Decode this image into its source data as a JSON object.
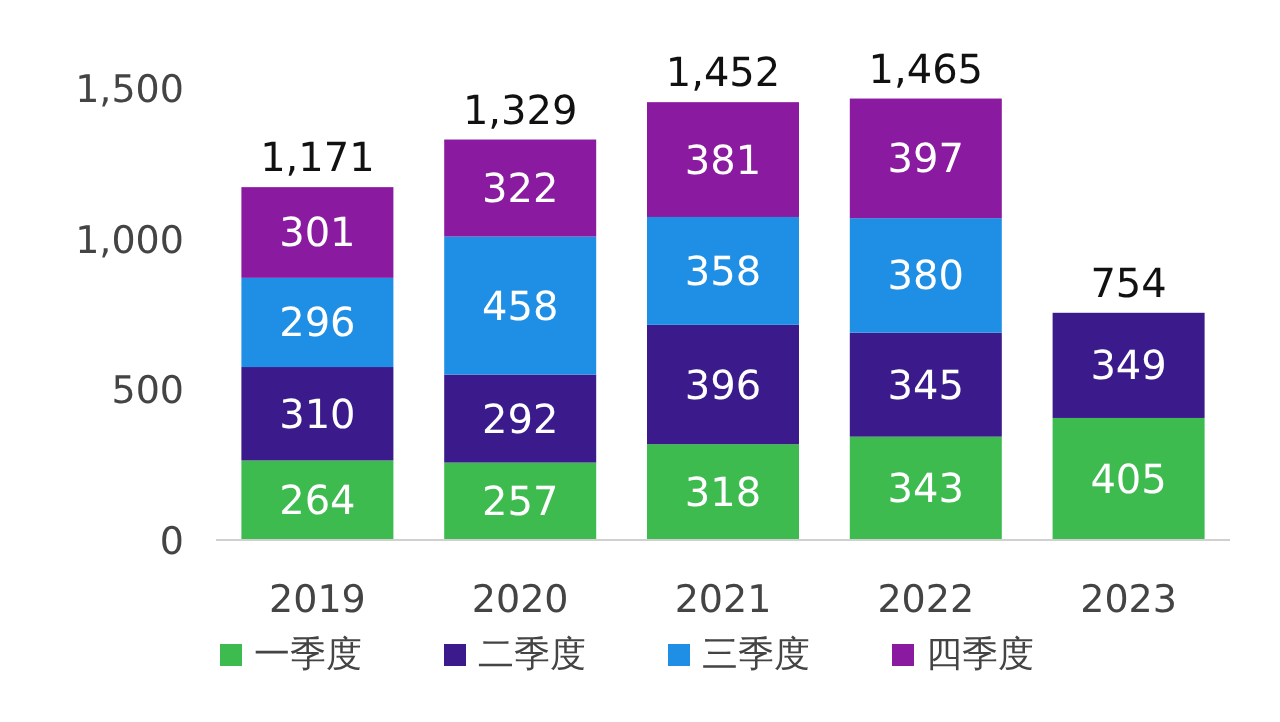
{
  "chart_data": {
    "type": "bar",
    "stacked": true,
    "categories": [
      "2019",
      "2020",
      "2021",
      "2022",
      "2023"
    ],
    "series": [
      {
        "name": "一季度",
        "color": "#3dbb4f",
        "values": [
          264,
          257,
          318,
          343,
          405
        ]
      },
      {
        "name": "二季度",
        "color": "#3b1a8c",
        "values": [
          310,
          292,
          396,
          345,
          349
        ]
      },
      {
        "name": "三季度",
        "color": "#1f8fe6",
        "values": [
          296,
          458,
          358,
          380,
          null
        ]
      },
      {
        "name": "四季度",
        "color": "#8a1aa0",
        "values": [
          301,
          322,
          381,
          397,
          null
        ]
      }
    ],
    "ylim": [
      0,
      1500
    ],
    "yticks": [
      0,
      500,
      {
        "value": 1000,
        "label": "1,000"
      },
      {
        "value": 1500,
        "label": "1,500"
      }
    ],
    "data_labels": true,
    "totals": [
      "1,171",
      "1,329",
      "1,452",
      "1,465",
      "754"
    ],
    "legend": "bottom",
    "grid": false
  }
}
